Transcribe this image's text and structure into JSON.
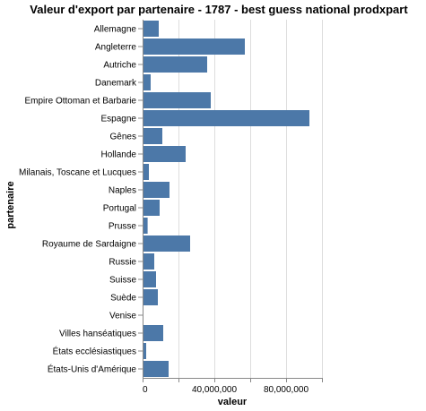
{
  "chart_data": {
    "type": "bar",
    "orientation": "horizontal",
    "title": "Valeur d'export par partenaire - 1787 - best guess national prodxpart",
    "xlabel": "valeur",
    "ylabel": "partenaire",
    "xlim": [
      0,
      100000000
    ],
    "xticks": [
      0,
      40000000,
      80000000
    ],
    "xtick_labels": [
      "0",
      "40,000,000",
      "80,000,000"
    ],
    "grid": true,
    "bar_color": "#4c78a8",
    "categories": [
      "Allemagne",
      "Angleterre",
      "Autriche",
      "Danemark",
      "Empire Ottoman et Barbarie",
      "Espagne",
      "Gênes",
      "Hollande",
      "Milanais, Toscane et Lucques",
      "Naples",
      "Portugal",
      "Prusse",
      "Royaume de Sardaigne",
      "Russie",
      "Suisse",
      "Suède",
      "Venise",
      "Villes hanséatiques",
      "États ecclésiastiques",
      "États-Unis d'Amérique"
    ],
    "values": [
      9000000,
      57000000,
      36000000,
      4500000,
      38000000,
      93000000,
      11000000,
      24000000,
      3500000,
      15000000,
      9500000,
      2800000,
      26500000,
      6500000,
      7500000,
      8500000,
      0,
      11500000,
      2000000,
      14500000
    ]
  }
}
